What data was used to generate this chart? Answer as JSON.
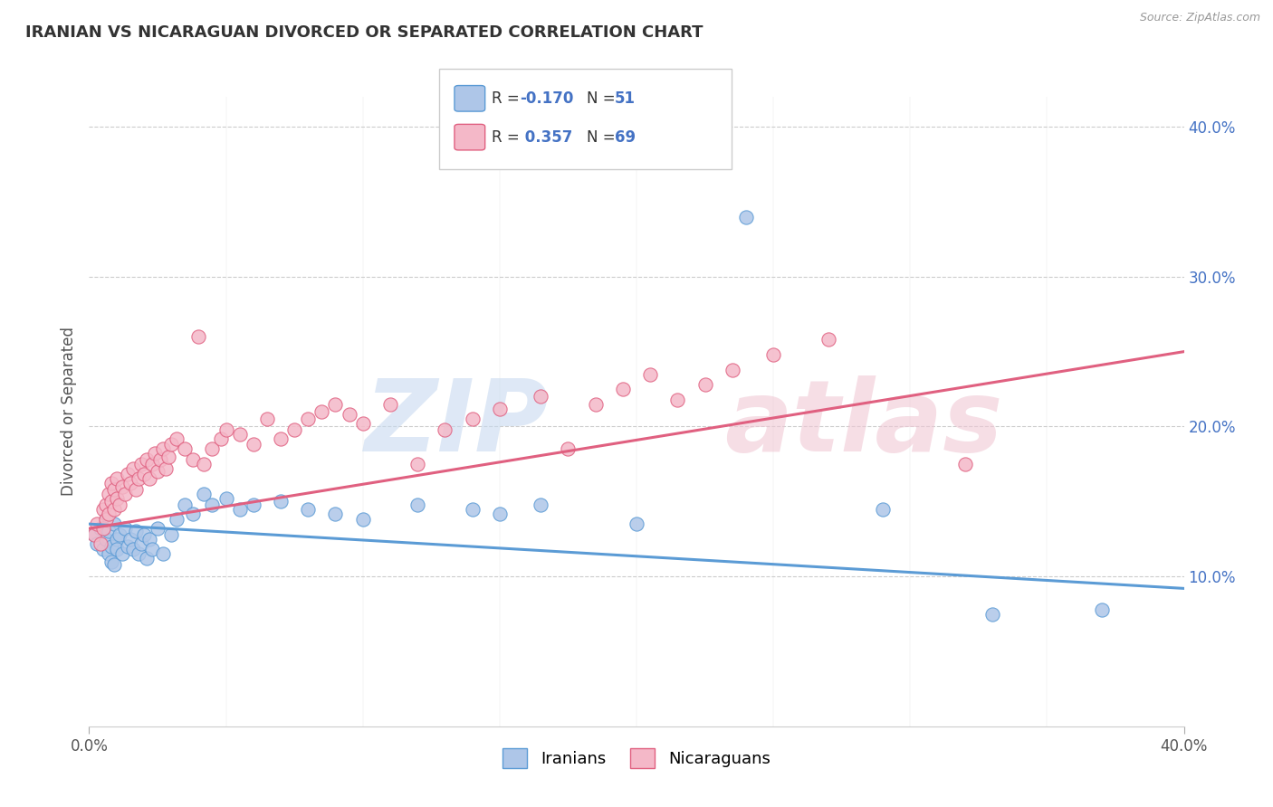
{
  "title": "IRANIAN VS NICARAGUAN DIVORCED OR SEPARATED CORRELATION CHART",
  "source": "Source: ZipAtlas.com",
  "ylabel": "Divorced or Separated",
  "legend": {
    "iranian": {
      "R": -0.17,
      "N": 51,
      "color": "#aec6e8",
      "line_color": "#5b9bd5"
    },
    "nicaraguan": {
      "R": 0.357,
      "N": 69,
      "color": "#f4b8c8",
      "line_color": "#e06080"
    }
  },
  "xmin": 0.0,
  "xmax": 0.4,
  "ymin": 0.0,
  "ymax": 0.42,
  "yticks": [
    0.1,
    0.2,
    0.3,
    0.4
  ],
  "ytick_labels": [
    "10.0%",
    "20.0%",
    "30.0%",
    "40.0%"
  ],
  "background_color": "#ffffff",
  "grid_color": "#cccccc",
  "title_color": "#333333",
  "iranians_x": [
    0.002,
    0.003,
    0.004,
    0.005,
    0.006,
    0.006,
    0.007,
    0.007,
    0.008,
    0.008,
    0.009,
    0.009,
    0.01,
    0.01,
    0.011,
    0.012,
    0.013,
    0.014,
    0.015,
    0.016,
    0.017,
    0.018,
    0.019,
    0.02,
    0.021,
    0.022,
    0.023,
    0.025,
    0.027,
    0.03,
    0.032,
    0.035,
    0.038,
    0.042,
    0.045,
    0.05,
    0.055,
    0.06,
    0.07,
    0.08,
    0.09,
    0.1,
    0.12,
    0.14,
    0.15,
    0.165,
    0.2,
    0.24,
    0.29,
    0.33,
    0.37
  ],
  "iranians_y": [
    0.128,
    0.122,
    0.132,
    0.118,
    0.138,
    0.125,
    0.115,
    0.13,
    0.11,
    0.12,
    0.135,
    0.108,
    0.125,
    0.118,
    0.128,
    0.115,
    0.132,
    0.12,
    0.125,
    0.118,
    0.13,
    0.115,
    0.122,
    0.128,
    0.112,
    0.125,
    0.118,
    0.132,
    0.115,
    0.128,
    0.138,
    0.148,
    0.142,
    0.155,
    0.148,
    0.152,
    0.145,
    0.148,
    0.15,
    0.145,
    0.142,
    0.138,
    0.148,
    0.145,
    0.142,
    0.148,
    0.135,
    0.34,
    0.145,
    0.075,
    0.078
  ],
  "nicaraguans_x": [
    0.002,
    0.003,
    0.004,
    0.005,
    0.005,
    0.006,
    0.006,
    0.007,
    0.007,
    0.008,
    0.008,
    0.009,
    0.009,
    0.01,
    0.01,
    0.011,
    0.012,
    0.013,
    0.014,
    0.015,
    0.016,
    0.017,
    0.018,
    0.019,
    0.02,
    0.021,
    0.022,
    0.023,
    0.024,
    0.025,
    0.026,
    0.027,
    0.028,
    0.029,
    0.03,
    0.032,
    0.035,
    0.038,
    0.04,
    0.042,
    0.045,
    0.048,
    0.05,
    0.055,
    0.06,
    0.065,
    0.07,
    0.075,
    0.08,
    0.085,
    0.09,
    0.095,
    0.1,
    0.11,
    0.12,
    0.13,
    0.14,
    0.15,
    0.165,
    0.175,
    0.185,
    0.195,
    0.205,
    0.215,
    0.225,
    0.235,
    0.25,
    0.27,
    0.32
  ],
  "nicaraguans_y": [
    0.128,
    0.135,
    0.122,
    0.145,
    0.132,
    0.148,
    0.138,
    0.155,
    0.142,
    0.15,
    0.162,
    0.145,
    0.158,
    0.152,
    0.165,
    0.148,
    0.16,
    0.155,
    0.168,
    0.162,
    0.172,
    0.158,
    0.165,
    0.175,
    0.168,
    0.178,
    0.165,
    0.175,
    0.182,
    0.17,
    0.178,
    0.185,
    0.172,
    0.18,
    0.188,
    0.192,
    0.185,
    0.178,
    0.26,
    0.175,
    0.185,
    0.192,
    0.198,
    0.195,
    0.188,
    0.205,
    0.192,
    0.198,
    0.205,
    0.21,
    0.215,
    0.208,
    0.202,
    0.215,
    0.175,
    0.198,
    0.205,
    0.212,
    0.22,
    0.185,
    0.215,
    0.225,
    0.235,
    0.218,
    0.228,
    0.238,
    0.248,
    0.258,
    0.175
  ]
}
